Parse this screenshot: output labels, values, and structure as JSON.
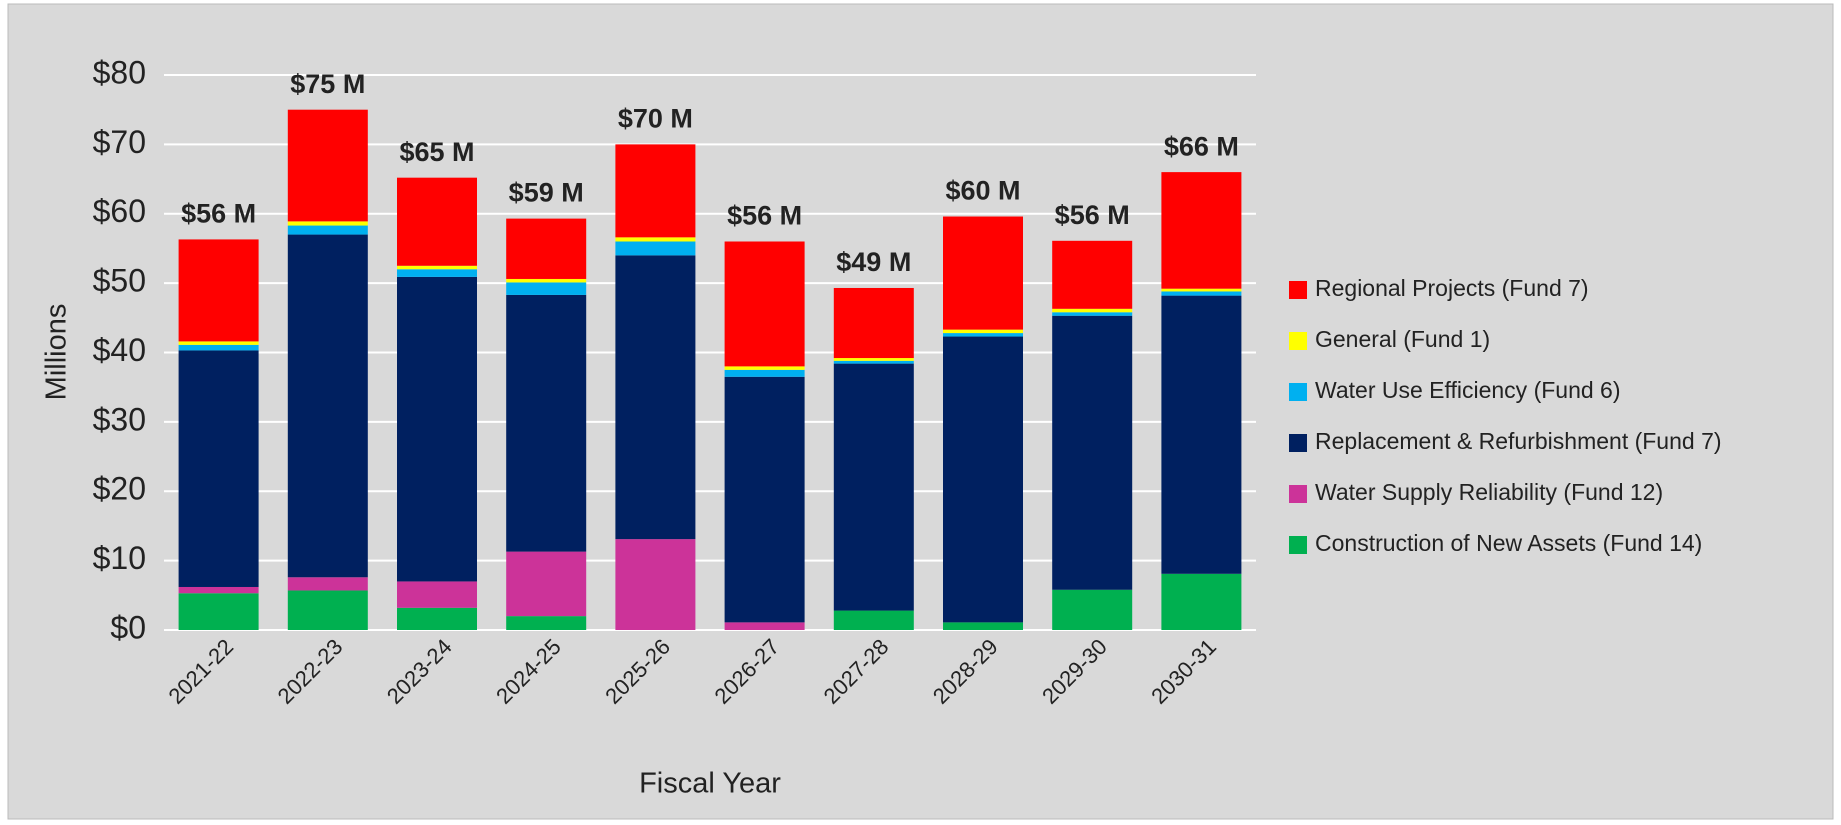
{
  "chart_data": {
    "type": "stacked_bar",
    "xlabel": "Fiscal Year",
    "ylabel": "Millions",
    "categories": [
      "2021-22",
      "2022-23",
      "2023-24",
      "2024-25",
      "2025-26",
      "2026-27",
      "2027-28",
      "2028-29",
      "2029-30",
      "2030-31"
    ],
    "series": [
      {
        "name": "Construction of New Assets (Fund 14)",
        "color": "#00b050",
        "values": [
          5.3,
          5.7,
          3.2,
          2.0,
          0,
          0,
          2.8,
          1.1,
          5.8,
          8.1
        ]
      },
      {
        "name": "Water Supply Reliability (Fund 12)",
        "color": "#cc3399",
        "values": [
          0.9,
          1.9,
          3.8,
          9.3,
          13.1,
          1.1,
          0,
          0,
          0,
          0
        ]
      },
      {
        "name": "Replacement & Refurbishment (Fund 7)",
        "color": "#002060",
        "values": [
          34.1,
          49.4,
          43.9,
          37.0,
          40.9,
          35.4,
          35.6,
          41.2,
          39.5,
          40.1
        ]
      },
      {
        "name": "Water Use Efficiency (Fund 6)",
        "color": "#00b0f0",
        "values": [
          0.8,
          1.3,
          1.1,
          1.8,
          2.0,
          1.0,
          0.4,
          0.5,
          0.5,
          0.6
        ]
      },
      {
        "name": "General (Fund 1)",
        "color": "#ffff00",
        "values": [
          0.5,
          0.6,
          0.5,
          0.5,
          0.6,
          0.5,
          0.4,
          0.5,
          0.5,
          0.4
        ]
      },
      {
        "name": "Regional Projects (Fund 7)",
        "color": "#ff0000",
        "values": [
          14.7,
          16.1,
          12.7,
          8.7,
          13.4,
          18.0,
          10.1,
          16.3,
          9.8,
          16.8
        ]
      }
    ],
    "totals": {
      "values": [
        56.3,
        75.0,
        65.2,
        59.3,
        70.0,
        56.0,
        49.3,
        59.6,
        56.1,
        66.0
      ],
      "value_labels": [
        "$56 M",
        "$75 M",
        "$65 M",
        "$59 M",
        "$70 M",
        "$56 M",
        "$49 M",
        "$60 M",
        "$56 M",
        "$66 M"
      ]
    },
    "ylim": [
      0,
      80
    ],
    "yticks": [
      {
        "value": 0,
        "label": "$0"
      },
      {
        "value": 10,
        "label": "$10"
      },
      {
        "value": 20,
        "label": "$20"
      },
      {
        "value": 30,
        "label": "$30"
      },
      {
        "value": 40,
        "label": "$40"
      },
      {
        "value": 50,
        "label": "$50"
      },
      {
        "value": 60,
        "label": "$60"
      },
      {
        "value": 70,
        "label": "$70"
      },
      {
        "value": 80,
        "label": "$80"
      }
    ],
    "grid": true,
    "legend": "right"
  }
}
